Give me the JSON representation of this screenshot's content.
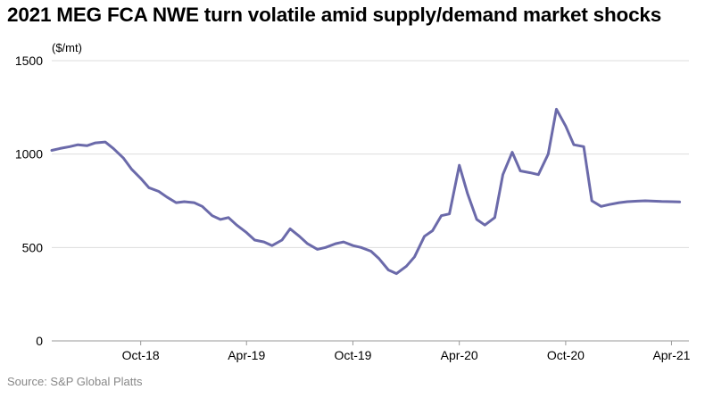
{
  "header": {
    "title": "2021 MEG FCA NWE turn volatile amid supply/demand market shocks",
    "unit": "($/mt)"
  },
  "footer": {
    "source": "Source: S&P Global Platts"
  },
  "colors": {
    "line": "#6b6aaa",
    "grid": "#dddddd",
    "axis": "#999999"
  },
  "chart_data": {
    "type": "line",
    "title": "2021 MEG FCA NWE turn volatile amid supply/demand market shocks",
    "ylabel": "($/mt)",
    "xlabel": "",
    "ylim": [
      0,
      1500
    ],
    "yticks": [
      0,
      500,
      1000,
      1500
    ],
    "grid": "horizontal",
    "x_tick_labels": [
      "Oct-18",
      "Apr-19",
      "Oct-19",
      "Apr-20",
      "Oct-20",
      "Apr-21"
    ],
    "x_tick_dates": [
      "2018-10",
      "2019-04",
      "2019-10",
      "2020-04",
      "2020-10",
      "2021-04"
    ],
    "x": [
      "2018-05-01",
      "2018-05-15",
      "2018-06-01",
      "2018-06-15",
      "2018-07-01",
      "2018-07-15",
      "2018-08-01",
      "2018-08-15",
      "2018-09-01",
      "2018-09-15",
      "2018-10-01",
      "2018-10-15",
      "2018-11-01",
      "2018-11-15",
      "2018-12-01",
      "2018-12-15",
      "2019-01-01",
      "2019-01-15",
      "2019-02-01",
      "2019-02-15",
      "2019-03-01",
      "2019-03-15",
      "2019-04-01",
      "2019-04-15",
      "2019-05-01",
      "2019-05-15",
      "2019-06-01",
      "2019-06-15",
      "2019-07-01",
      "2019-07-15",
      "2019-08-01",
      "2019-08-15",
      "2019-09-01",
      "2019-09-15",
      "2019-10-01",
      "2019-10-15",
      "2019-11-01",
      "2019-11-15",
      "2019-12-01",
      "2019-12-15",
      "2020-01-01",
      "2020-01-15",
      "2020-02-01",
      "2020-02-15",
      "2020-03-01",
      "2020-03-15",
      "2020-04-01",
      "2020-04-15",
      "2020-05-01",
      "2020-05-15",
      "2020-06-01",
      "2020-06-15",
      "2020-07-01",
      "2020-07-15",
      "2020-08-01",
      "2020-08-15",
      "2020-09-01",
      "2020-09-15",
      "2020-10-01",
      "2020-10-15",
      "2020-11-01",
      "2020-11-15",
      "2020-12-01",
      "2020-12-15",
      "2021-01-01",
      "2021-01-15",
      "2021-02-01",
      "2021-02-15",
      "2021-03-01",
      "2021-03-15",
      "2021-04-01",
      "2021-04-15"
    ],
    "series": [
      {
        "values": [
          1020,
          1030,
          1040,
          1050,
          1045,
          1060,
          1065,
          1030,
          980,
          920,
          870,
          820,
          800,
          770,
          740,
          745,
          740,
          720,
          670,
          650,
          660,
          620,
          580,
          540,
          530,
          510,
          540,
          600,
          560,
          520,
          490,
          500,
          520,
          530,
          510,
          500,
          480,
          440,
          380,
          360,
          400,
          450,
          560,
          590,
          670,
          680,
          940,
          790,
          650,
          620,
          660,
          890,
          1010,
          910,
          900,
          890,
          1000,
          1240,
          1150,
          1050,
          1040,
          750,
          720,
          730,
          740,
          745,
          748,
          750,
          748,
          746,
          745,
          744
        ]
      }
    ]
  }
}
